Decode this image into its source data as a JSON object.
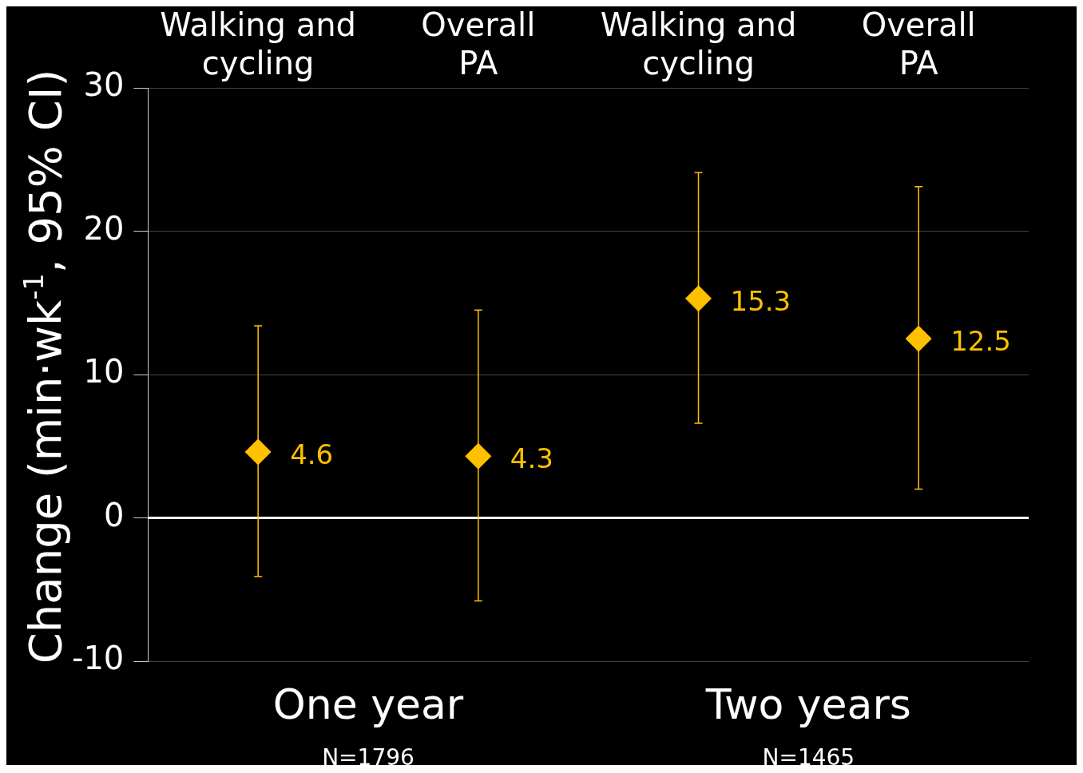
{
  "chart_data": {
    "type": "scatter",
    "ylabel": "Change (min·wk$^{-1}$, 95% CI)",
    "categories": [
      "Walking and cycling",
      "Overall PA",
      "Walking and cycling",
      "Overall PA"
    ],
    "values": [
      4.6,
      4.3,
      15.3,
      12.5
    ],
    "errors": [
      [
        -4.1,
        13.4
      ],
      [
        -5.8,
        14.5
      ],
      [
        6.6,
        24.1
      ],
      [
        2.0,
        23.1
      ]
    ],
    "color": "#ffc000",
    "marker": "diamond",
    "data_labels": true,
    "ylim": [
      -10,
      30
    ],
    "yticks": [
      -10,
      0,
      10,
      20,
      30
    ],
    "grid": "y",
    "ref_lines": [
      {
        "axis": "y",
        "value": 0,
        "color": "#ffffff"
      }
    ],
    "annotations": [
      "One year",
      "N=1796",
      "Two years",
      "N=1465"
    ]
  }
}
